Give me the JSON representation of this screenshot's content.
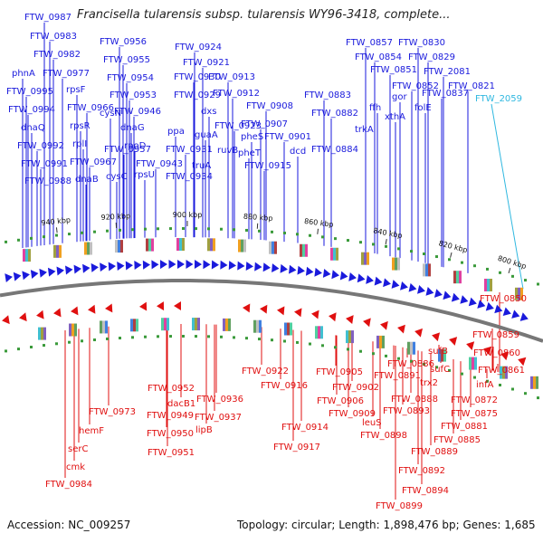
{
  "title": "Francisella tularensis subsp. tularensis WY96-3418, complete...",
  "accession": "Accession: NC_009257",
  "summary": "Topology: circular; Length: 1,898,476 bp; Genes: 1,685",
  "colors": {
    "forward": "#1a1adc",
    "reverse": "#e01010",
    "highlight": "#30b8e0",
    "backbone": "#777777"
  },
  "ticks": [
    "800 kbp",
    "820 kbp",
    "840 kbp",
    "860 kbp",
    "880 kbp",
    "900 kbp",
    "920 kbp",
    "940 kbp"
  ],
  "forward_labels": [
    "FTW_0987",
    "FTW_0983",
    "FTW_0982",
    "phnA",
    "FTW_0977",
    "FTW_0995",
    "rpsF",
    "FTW_0994",
    "FTW_0966",
    "dnaQ",
    "rpsR",
    "FTW_0992",
    "rplI",
    "FTW_0991",
    "FTW_0967",
    "FTW_0988",
    "dnaB",
    "FTW_0956",
    "FTW_0955",
    "FTW_0954",
    "FTW_0953",
    "cysN",
    "FTW_0946",
    "FTW_0957",
    "cysC",
    "dnaG",
    "rpoD",
    "FTW_0943",
    "rpsU",
    "FTW_0924",
    "FTW_0921",
    "FTW_0930",
    "FTW_0913",
    "FTW_0912",
    "FTW_0929",
    "dxs",
    "ppa",
    "guaA",
    "FTW_0923",
    "FTW_0908",
    "FTW_0931",
    "FTW_0907",
    "ruvB",
    "pheS",
    "truA",
    "FTW_0901",
    "FTW_0934",
    "pheT",
    "FTW_0915",
    "dcd",
    "FTW_0857",
    "FTW_0830",
    "FTW_0854",
    "FTW_0829",
    "FTW_0851",
    "FTW_2081",
    "FTW_0852",
    "gor",
    "FTW_0821",
    "FTW_0837",
    "FTW_0883",
    "ffh",
    "FTW_0882",
    "xthA",
    "folE",
    "trkA",
    "FTW_0884"
  ],
  "highlight_label": "FTW_2059",
  "reverse_labels": [
    "FTW_0850",
    "FTW_0859",
    "FTW_0860",
    "sufB",
    "FTW_0861",
    "sufC",
    "FTW_0886",
    "trx2",
    "infA",
    "FTW_0891",
    "FTW_0872",
    "FTW_0888",
    "FTW_0875",
    "FTW_0893",
    "FTW_0881",
    "leuS",
    "FTW_0885",
    "FTW_0898",
    "FTW_0889",
    "FTW_0892",
    "FTW_0894",
    "FTW_0899",
    "FTW_0905",
    "FTW_0902",
    "FTW_0906",
    "FTW_0909",
    "FTW_0922",
    "FTW_0916",
    "FTW_0914",
    "FTW_0917",
    "FTW_0952",
    "dacB1",
    "FTW_0949",
    "FTW_0950",
    "FTW_0951",
    "FTW_0936",
    "FTW_0937",
    "lipB",
    "FTW_0973",
    "hemF",
    "serC",
    "cmk",
    "FTW_0984"
  ]
}
